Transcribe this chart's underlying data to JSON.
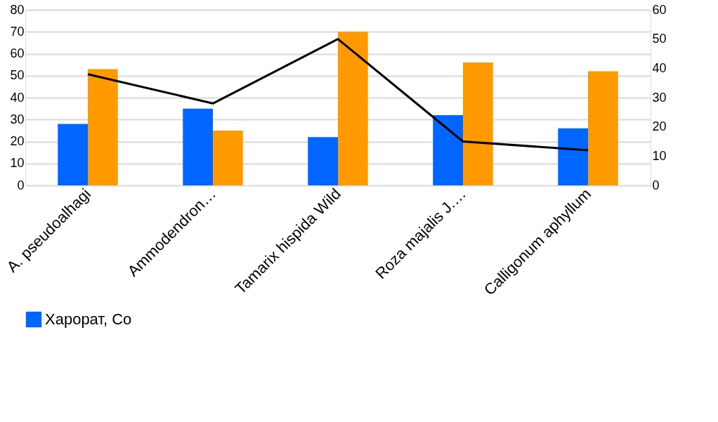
{
  "chart_data": {
    "type": "bar",
    "categories": [
      "A. pseudoalhagi",
      "Ammodendron…",
      "Tamarix hispida Wild",
      "Roza majalis J.…",
      "Calligonum aphyllum"
    ],
    "series": [
      {
        "name": "Харорат, Co",
        "color": "#0066ff",
        "values": [
          28,
          35,
          22,
          32,
          26
        ]
      },
      {
        "color": "#ff9900",
        "values": [
          53,
          25,
          70,
          56,
          52
        ]
      },
      {
        "type": "line",
        "axis": "y2",
        "color": "#000000",
        "values": [
          38,
          28,
          50,
          15,
          12
        ]
      }
    ],
    "ylim": [
      0,
      80
    ],
    "yticks": [
      0,
      10,
      20,
      30,
      40,
      50,
      60,
      70,
      80
    ],
    "y2lim": [
      0,
      60
    ],
    "y2ticks": [
      0,
      10,
      20,
      30,
      40,
      50,
      60
    ],
    "grid": "y",
    "legend": "bottom"
  }
}
